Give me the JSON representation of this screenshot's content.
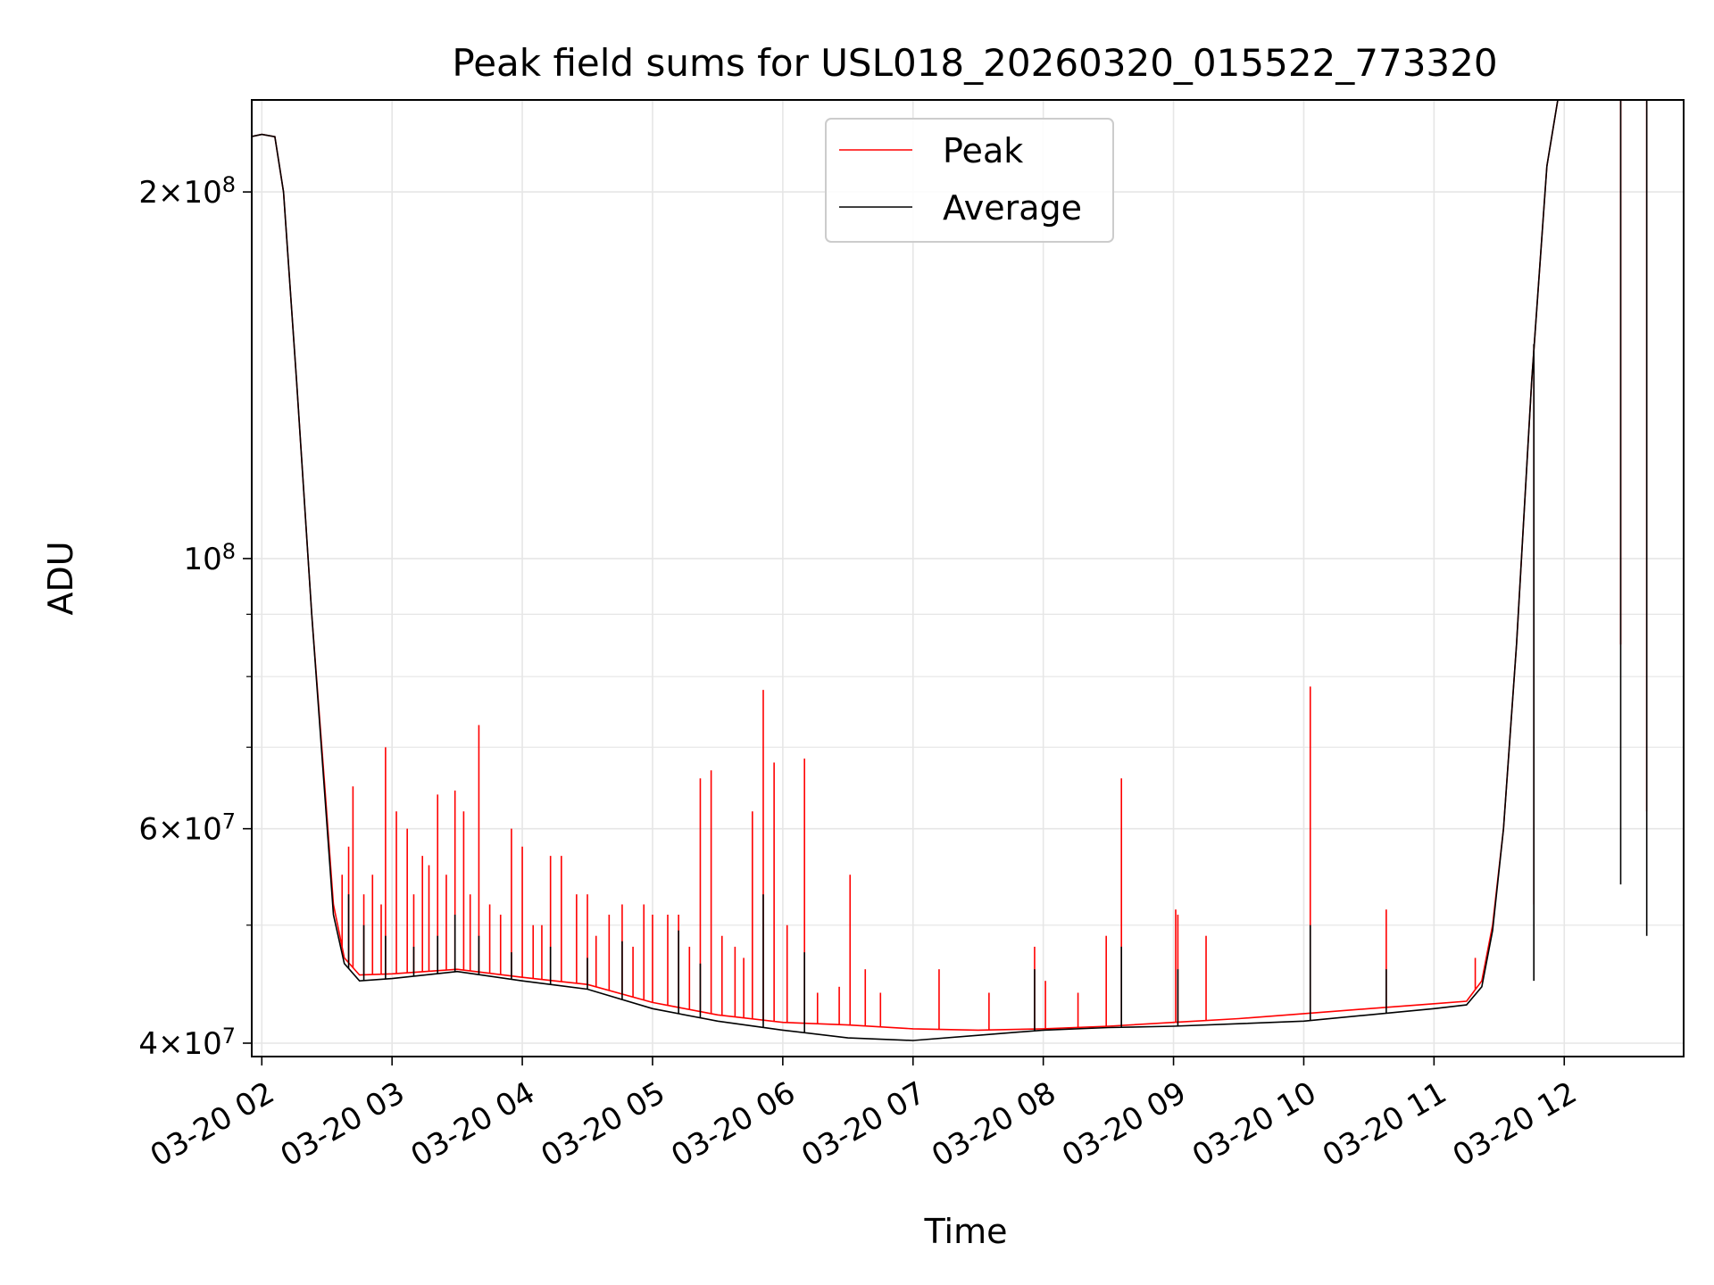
{
  "chart_data": {
    "type": "line",
    "title": "Peak field sums for USL018_20260320_015522_773320",
    "xlabel": "Time",
    "ylabel": "ADU",
    "y_scale": "log",
    "xlim": [
      "2026-03-20 01:55:22",
      "2026-03-20 12:55:00"
    ],
    "ylim": [
      39000000,
      238000000
    ],
    "grid": true,
    "legend_placement": "upper center",
    "x_ticks": [
      {
        "value": "2026-03-20 02:00",
        "label": "03-20 02"
      },
      {
        "value": "2026-03-20 03:00",
        "label": "03-20 03"
      },
      {
        "value": "2026-03-20 04:00",
        "label": "03-20 04"
      },
      {
        "value": "2026-03-20 05:00",
        "label": "03-20 05"
      },
      {
        "value": "2026-03-20 06:00",
        "label": "03-20 06"
      },
      {
        "value": "2026-03-20 07:00",
        "label": "03-20 07"
      },
      {
        "value": "2026-03-20 08:00",
        "label": "03-20 08"
      },
      {
        "value": "2026-03-20 09:00",
        "label": "03-20 09"
      },
      {
        "value": "2026-03-20 10:00",
        "label": "03-20 10"
      },
      {
        "value": "2026-03-20 11:00",
        "label": "03-20 11"
      },
      {
        "value": "2026-03-20 12:00",
        "label": "03-20 12"
      }
    ],
    "y_ticks_major": [
      {
        "value": 40000000,
        "mant": "4",
        "times": "×",
        "base": "10",
        "exp": "7"
      },
      {
        "value": 60000000,
        "mant": "6",
        "times": "×",
        "base": "10",
        "exp": "7"
      },
      {
        "value": 100000000,
        "mant": "",
        "times": "",
        "base": "10",
        "exp": "8"
      },
      {
        "value": 200000000,
        "mant": "2",
        "times": "×",
        "base": "10",
        "exp": "8"
      }
    ],
    "y_ticks_minor": [
      50000000,
      70000000,
      80000000,
      90000000
    ],
    "series": [
      {
        "name": "Peak",
        "color": "#ff0000",
        "baseline": [
          [
            "2026-03-20 01:55",
            222000000
          ],
          [
            "2026-03-20 02:00",
            223000000
          ],
          [
            "2026-03-20 02:06",
            222000000
          ],
          [
            "2026-03-20 02:10",
            200000000
          ],
          [
            "2026-03-20 02:16",
            140000000
          ],
          [
            "2026-03-20 02:23",
            90000000
          ],
          [
            "2026-03-20 02:29",
            65000000
          ],
          [
            "2026-03-20 02:33",
            52000000
          ],
          [
            "2026-03-20 02:38",
            47000000
          ],
          [
            "2026-03-20 02:45",
            45500000
          ],
          [
            "2026-03-20 03:00",
            45600000
          ],
          [
            "2026-03-20 03:30",
            46000000
          ],
          [
            "2026-03-20 04:00",
            45300000
          ],
          [
            "2026-03-20 04:30",
            44700000
          ],
          [
            "2026-03-20 05:00",
            43200000
          ],
          [
            "2026-03-20 05:30",
            42200000
          ],
          [
            "2026-03-20 06:00",
            41600000
          ],
          [
            "2026-03-20 06:30",
            41400000
          ],
          [
            "2026-03-20 07:00",
            41100000
          ],
          [
            "2026-03-20 07:30",
            41000000
          ],
          [
            "2026-03-20 08:00",
            41100000
          ],
          [
            "2026-03-20 08:30",
            41300000
          ],
          [
            "2026-03-20 09:00",
            41600000
          ],
          [
            "2026-03-20 09:30",
            41900000
          ],
          [
            "2026-03-20 10:00",
            42300000
          ],
          [
            "2026-03-20 10:30",
            42700000
          ],
          [
            "2026-03-20 11:00",
            43100000
          ],
          [
            "2026-03-20 11:15",
            43300000
          ],
          [
            "2026-03-20 11:22",
            45000000
          ],
          [
            "2026-03-20 11:27",
            50000000
          ],
          [
            "2026-03-20 11:32",
            60000000
          ],
          [
            "2026-03-20 11:38",
            85000000
          ],
          [
            "2026-03-20 11:45",
            140000000
          ],
          [
            "2026-03-20 11:52",
            210000000
          ],
          [
            "2026-03-20 11:57",
            238000000
          ]
        ],
        "spikes": [
          [
            "2026-03-20 02:37",
            55000000
          ],
          [
            "2026-03-20 02:40",
            58000000
          ],
          [
            "2026-03-20 02:42",
            65000000
          ],
          [
            "2026-03-20 02:47",
            53000000
          ],
          [
            "2026-03-20 02:51",
            55000000
          ],
          [
            "2026-03-20 02:55",
            52000000
          ],
          [
            "2026-03-20 02:57",
            70000000
          ],
          [
            "2026-03-20 03:02",
            62000000
          ],
          [
            "2026-03-20 03:07",
            60000000
          ],
          [
            "2026-03-20 03:10",
            53000000
          ],
          [
            "2026-03-20 03:14",
            57000000
          ],
          [
            "2026-03-20 03:17",
            56000000
          ],
          [
            "2026-03-20 03:21",
            64000000
          ],
          [
            "2026-03-20 03:25",
            55000000
          ],
          [
            "2026-03-20 03:29",
            64500000
          ],
          [
            "2026-03-20 03:33",
            62000000
          ],
          [
            "2026-03-20 03:36",
            53000000
          ],
          [
            "2026-03-20 03:40",
            73000000
          ],
          [
            "2026-03-20 03:45",
            52000000
          ],
          [
            "2026-03-20 03:50",
            51000000
          ],
          [
            "2026-03-20 03:55",
            60000000
          ],
          [
            "2026-03-20 04:00",
            58000000
          ],
          [
            "2026-03-20 04:05",
            50000000
          ],
          [
            "2026-03-20 04:09",
            50000000
          ],
          [
            "2026-03-20 04:13",
            57000000
          ],
          [
            "2026-03-20 04:18",
            57000000
          ],
          [
            "2026-03-20 04:25",
            53000000
          ],
          [
            "2026-03-20 04:30",
            53000000
          ],
          [
            "2026-03-20 04:34",
            49000000
          ],
          [
            "2026-03-20 04:40",
            51000000
          ],
          [
            "2026-03-20 04:46",
            52000000
          ],
          [
            "2026-03-20 04:51",
            48000000
          ],
          [
            "2026-03-20 04:56",
            52000000
          ],
          [
            "2026-03-20 05:00",
            51000000
          ],
          [
            "2026-03-20 05:07",
            51000000
          ],
          [
            "2026-03-20 05:12",
            51000000
          ],
          [
            "2026-03-20 05:17",
            48000000
          ],
          [
            "2026-03-20 05:22",
            66000000
          ],
          [
            "2026-03-20 05:27",
            67000000
          ],
          [
            "2026-03-20 05:32",
            49000000
          ],
          [
            "2026-03-20 05:38",
            48000000
          ],
          [
            "2026-03-20 05:42",
            47000000
          ],
          [
            "2026-03-20 05:46",
            62000000
          ],
          [
            "2026-03-20 05:51",
            78000000
          ],
          [
            "2026-03-20 05:56",
            68000000
          ],
          [
            "2026-03-20 06:02",
            50000000
          ],
          [
            "2026-03-20 06:10",
            68500000
          ],
          [
            "2026-03-20 06:16",
            44000000
          ],
          [
            "2026-03-20 06:26",
            44500000
          ],
          [
            "2026-03-20 06:31",
            55000000
          ],
          [
            "2026-03-20 06:38",
            46000000
          ],
          [
            "2026-03-20 06:45",
            44000000
          ],
          [
            "2026-03-20 07:12",
            46000000
          ],
          [
            "2026-03-20 07:35",
            44000000
          ],
          [
            "2026-03-20 07:56",
            48000000
          ],
          [
            "2026-03-20 08:01",
            45000000
          ],
          [
            "2026-03-20 08:16",
            44000000
          ],
          [
            "2026-03-20 08:29",
            49000000
          ],
          [
            "2026-03-20 08:36",
            66000000
          ],
          [
            "2026-03-20 09:01",
            51500000
          ],
          [
            "2026-03-20 09:02",
            51000000
          ],
          [
            "2026-03-20 09:15",
            49000000
          ],
          [
            "2026-03-20 10:03",
            78500000
          ],
          [
            "2026-03-20 10:38",
            51500000
          ],
          [
            "2026-03-20 11:19",
            47000000
          ],
          [
            "2026-03-20 11:46",
            52000000
          ],
          [
            "2026-03-20 12:26",
            85000000
          ],
          [
            "2026-03-20 12:38",
            62000000
          ]
        ]
      },
      {
        "name": "Average",
        "color": "#000000",
        "baseline": [
          [
            "2026-03-20 01:55",
            222000000
          ],
          [
            "2026-03-20 02:00",
            223000000
          ],
          [
            "2026-03-20 02:06",
            222000000
          ],
          [
            "2026-03-20 02:10",
            200000000
          ],
          [
            "2026-03-20 02:16",
            140000000
          ],
          [
            "2026-03-20 02:23",
            90000000
          ],
          [
            "2026-03-20 02:29",
            64000000
          ],
          [
            "2026-03-20 02:33",
            51000000
          ],
          [
            "2026-03-20 02:38",
            46500000
          ],
          [
            "2026-03-20 02:45",
            45000000
          ],
          [
            "2026-03-20 03:00",
            45200000
          ],
          [
            "2026-03-20 03:30",
            45800000
          ],
          [
            "2026-03-20 04:00",
            45000000
          ],
          [
            "2026-03-20 04:30",
            44300000
          ],
          [
            "2026-03-20 05:00",
            42700000
          ],
          [
            "2026-03-20 05:30",
            41700000
          ],
          [
            "2026-03-20 06:00",
            41000000
          ],
          [
            "2026-03-20 06:30",
            40400000
          ],
          [
            "2026-03-20 07:00",
            40200000
          ],
          [
            "2026-03-20 07:30",
            40600000
          ],
          [
            "2026-03-20 08:00",
            41000000
          ],
          [
            "2026-03-20 08:30",
            41200000
          ],
          [
            "2026-03-20 09:00",
            41300000
          ],
          [
            "2026-03-20 09:30",
            41500000
          ],
          [
            "2026-03-20 10:00",
            41700000
          ],
          [
            "2026-03-20 10:30",
            42200000
          ],
          [
            "2026-03-20 11:00",
            42700000
          ],
          [
            "2026-03-20 11:15",
            43000000
          ],
          [
            "2026-03-20 11:22",
            44500000
          ],
          [
            "2026-03-20 11:27",
            49500000
          ],
          [
            "2026-03-20 11:32",
            60000000
          ],
          [
            "2026-03-20 11:38",
            85000000
          ],
          [
            "2026-03-20 11:45",
            140000000
          ],
          [
            "2026-03-20 11:52",
            210000000
          ],
          [
            "2026-03-20 11:57",
            238000000
          ]
        ],
        "spikes": [
          [
            "2026-03-20 02:40",
            53000000
          ],
          [
            "2026-03-20 02:47",
            50000000
          ],
          [
            "2026-03-20 02:57",
            49000000
          ],
          [
            "2026-03-20 03:10",
            48000000
          ],
          [
            "2026-03-20 03:21",
            49000000
          ],
          [
            "2026-03-20 03:29",
            51000000
          ],
          [
            "2026-03-20 03:40",
            49000000
          ],
          [
            "2026-03-20 03:55",
            47500000
          ],
          [
            "2026-03-20 04:13",
            48000000
          ],
          [
            "2026-03-20 04:30",
            47000000
          ],
          [
            "2026-03-20 04:46",
            48500000
          ],
          [
            "2026-03-20 05:12",
            49500000
          ],
          [
            "2026-03-20 05:22",
            46500000
          ],
          [
            "2026-03-20 05:51",
            53000000
          ],
          [
            "2026-03-20 06:10",
            47500000
          ],
          [
            "2026-03-20 07:56",
            46000000
          ],
          [
            "2026-03-20 08:36",
            48000000
          ],
          [
            "2026-03-20 09:02",
            46000000
          ],
          [
            "2026-03-20 10:03",
            50000000
          ],
          [
            "2026-03-20 10:38",
            46000000
          ],
          [
            "2026-03-20 11:46",
            45000000
          ],
          [
            "2026-03-20 12:26",
            54000000
          ],
          [
            "2026-03-20 12:38",
            49000000
          ]
        ]
      }
    ]
  }
}
